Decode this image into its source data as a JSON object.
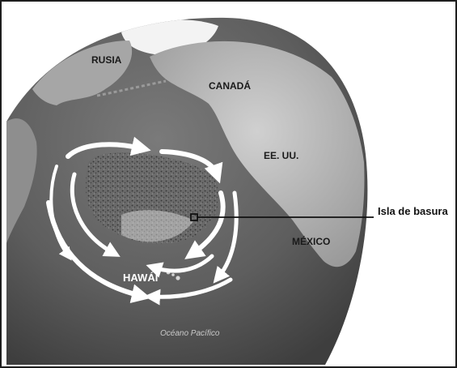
{
  "labels": {
    "russia": "RUSIA",
    "canada": "CANADÁ",
    "usa": "EE. UU.",
    "mexico": "MÉXICO",
    "hawaii": "HAWÁI",
    "ocean": "Océano Pacífico",
    "garbage_patch": "Isla de basura"
  },
  "colors": {
    "ocean": "#5c5c5c",
    "land": "#b5b5b5",
    "ice": "#f2f2f2",
    "current_arrows": "#ffffff",
    "callout_line": "#111111"
  }
}
